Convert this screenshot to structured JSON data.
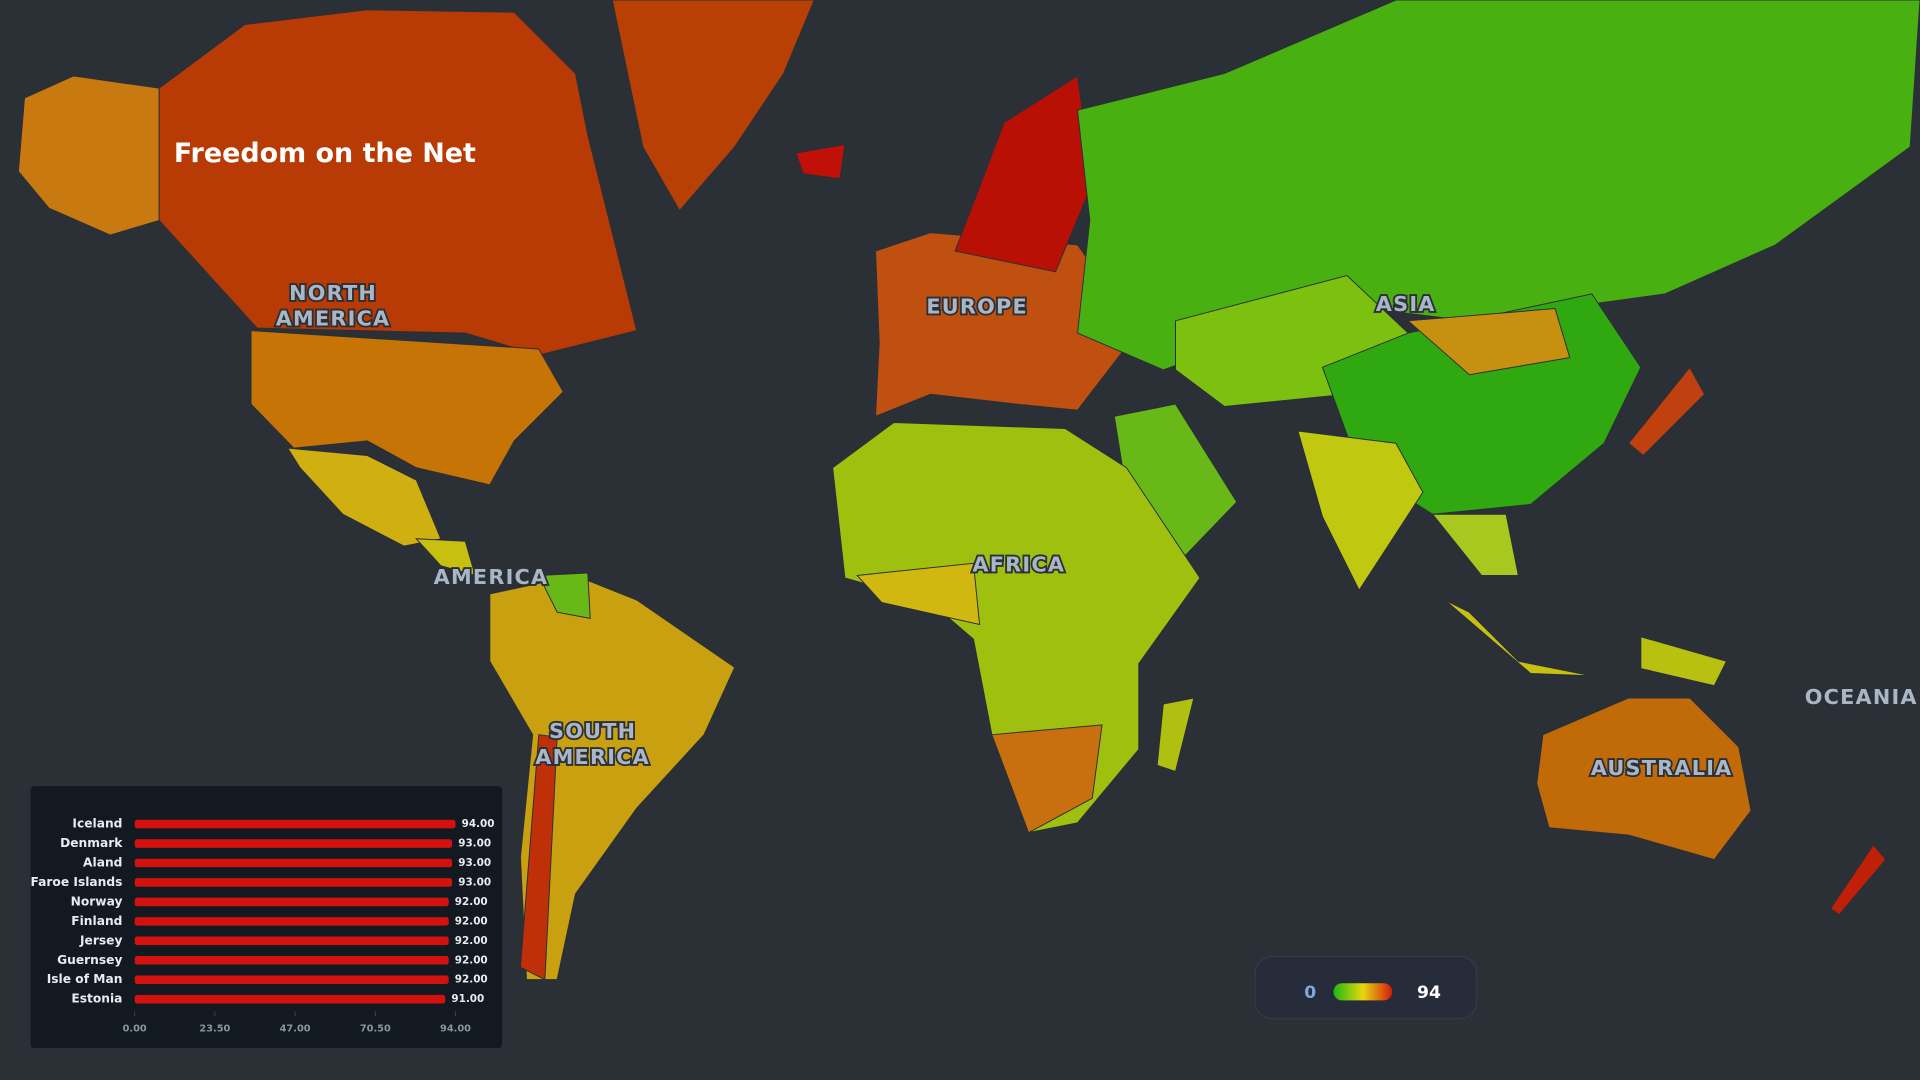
{
  "title": "Freedom on the Net",
  "continent_labels": [
    {
      "lines": [
        "NORTH",
        "AMERICA"
      ]
    },
    {
      "lines": [
        "EUROPE"
      ]
    },
    {
      "lines": [
        "ASIA"
      ]
    },
    {
      "lines": [
        "AMERICA"
      ]
    },
    {
      "lines": [
        "AFRICA"
      ]
    },
    {
      "lines": [
        "SOUTH",
        "AMERICA"
      ]
    },
    {
      "lines": [
        "OCEANIA"
      ]
    },
    {
      "lines": [
        "AUSTRALIA"
      ]
    }
  ],
  "legend": {
    "min": 0,
    "max": 94
  },
  "chart_data": {
    "type": "bar",
    "orientation": "horizontal",
    "categories": [
      "Iceland",
      "Denmark",
      "Aland",
      "Faroe Islands",
      "Norway",
      "Finland",
      "Jersey",
      "Guernsey",
      "Isle of Man",
      "Estonia"
    ],
    "values": [
      94,
      93,
      93,
      93,
      92,
      92,
      92,
      92,
      92,
      91
    ],
    "value_labels": [
      "94.00",
      "93.00",
      "93.00",
      "93.00",
      "92.00",
      "92.00",
      "92.00",
      "92.00",
      "92.00",
      "91.00"
    ],
    "color": "#d3120f",
    "xlim": [
      0,
      94
    ],
    "xticks": [
      {
        "value": 0,
        "label": "0.00"
      },
      {
        "value": 23.5,
        "label": "23.50"
      },
      {
        "value": 47,
        "label": "47.00"
      },
      {
        "value": 70.5,
        "label": "70.50"
      },
      {
        "value": 94,
        "label": "94.00"
      }
    ]
  }
}
